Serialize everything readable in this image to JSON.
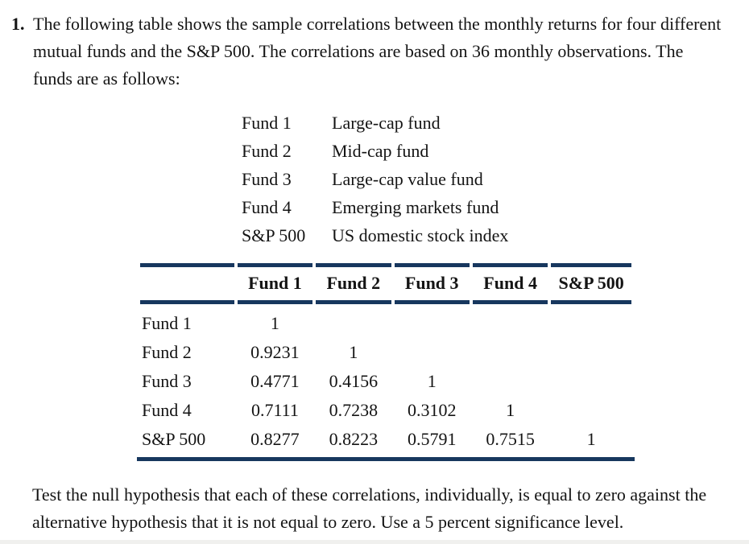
{
  "problem": {
    "number": "1.",
    "intro": "The following table shows the sample correlations between the monthly returns for four different mutual funds and the S&P 500. The correlations are based on 36 monthly observations. The funds are as follows:",
    "closing": "Test the null hypothesis that each of these correlations, individually, is equal to zero against the alternative hypothesis that it is not equal to zero. Use a 5 percent significance level."
  },
  "funds": [
    {
      "name": "Fund 1",
      "description": "Large-cap fund"
    },
    {
      "name": "Fund 2",
      "description": "Mid-cap fund"
    },
    {
      "name": "Fund 3",
      "description": "Large-cap value fund"
    },
    {
      "name": "Fund 4",
      "description": "Emerging markets fund"
    },
    {
      "name": "S&P 500",
      "description": "US domestic stock index"
    }
  ],
  "table": {
    "columns": [
      "",
      "Fund 1",
      "Fund 2",
      "Fund 3",
      "Fund 4",
      "S&P 500"
    ],
    "rows": [
      {
        "label": "Fund 1",
        "values": [
          "1",
          "",
          "",
          "",
          ""
        ]
      },
      {
        "label": "Fund 2",
        "values": [
          "0.9231",
          "1",
          "",
          "",
          ""
        ]
      },
      {
        "label": "Fund 3",
        "values": [
          "0.4771",
          "0.4156",
          "1",
          "",
          ""
        ]
      },
      {
        "label": "Fund 4",
        "values": [
          "0.7111",
          "0.7238",
          "0.3102",
          "1",
          ""
        ]
      },
      {
        "label": "S&P 500",
        "values": [
          "0.8277",
          "0.8223",
          "0.5791",
          "0.7515",
          "1"
        ]
      }
    ]
  },
  "colors": {
    "rule_navy": "#17375e",
    "text": "#141414",
    "background": "#ffffff"
  }
}
